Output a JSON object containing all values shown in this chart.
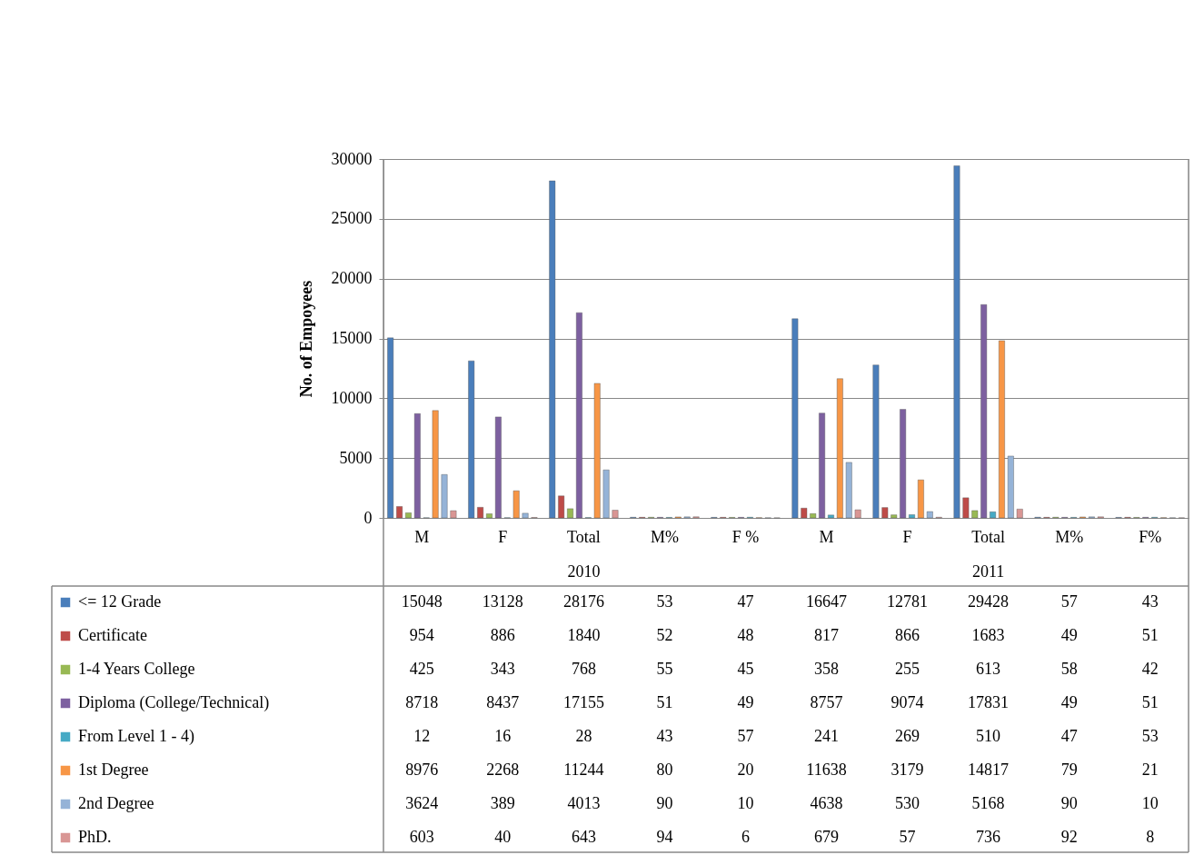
{
  "chart_data": {
    "type": "bar",
    "ylabel": "No. of Empoyees",
    "categories": [
      "M",
      "F",
      "Total",
      "M%",
      "F %",
      "M",
      "F",
      "Total",
      "M%",
      "F%"
    ],
    "annotations": [
      "2010",
      "2011"
    ],
    "series": [
      {
        "name": "<= 12 Grade",
        "color": "#4a7ebb",
        "values": [
          15048,
          13128,
          28176,
          53,
          47,
          16647,
          12781,
          29428,
          57,
          43
        ]
      },
      {
        "name": "Certificate",
        "color": "#be4b48",
        "values": [
          954,
          886,
          1840,
          52,
          48,
          817,
          866,
          1683,
          49,
          51
        ]
      },
      {
        "name": "1-4 Years College",
        "color": "#98b954",
        "values": [
          425,
          343,
          768,
          55,
          45,
          358,
          255,
          613,
          58,
          42
        ]
      },
      {
        "name": "Diploma (College/Technical)",
        "color": "#7d60a0",
        "values": [
          8718,
          8437,
          17155,
          51,
          49,
          8757,
          9074,
          17831,
          49,
          51
        ]
      },
      {
        "name": "From Level 1 - 4)",
        "color": "#46aac5",
        "values": [
          12,
          16,
          28,
          43,
          57,
          241,
          269,
          510,
          47,
          53
        ]
      },
      {
        "name": "1st Degree",
        "color": "#f79646",
        "values": [
          8976,
          2268,
          11244,
          80,
          20,
          11638,
          3179,
          14817,
          79,
          21
        ]
      },
      {
        "name": "2nd Degree",
        "color": "#95b3d7",
        "values": [
          3624,
          389,
          4013,
          90,
          10,
          4638,
          530,
          5168,
          90,
          10
        ]
      },
      {
        "name": "PhD.",
        "color": "#d99694",
        "values": [
          603,
          40,
          643,
          94,
          6,
          679,
          57,
          736,
          92,
          8
        ]
      }
    ],
    "ylim": [
      0,
      30000
    ],
    "yticks": [
      0,
      5000,
      10000,
      15000,
      20000,
      25000,
      30000
    ],
    "grid": "y",
    "legend": "bottom",
    "data_labels": true
  }
}
